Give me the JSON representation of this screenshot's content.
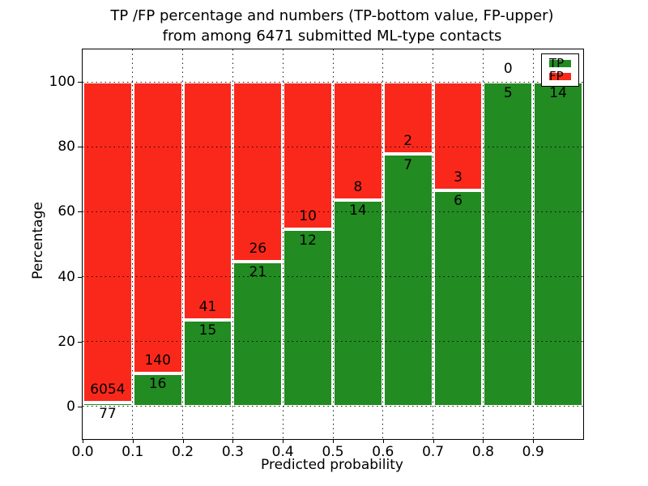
{
  "figure": {
    "title_line1": "TP /FP percentage and numbers (TP-bottom value, FP-upper)",
    "title_line2": "from among 6471 submitted ML-type contacts",
    "xlabel": "Predicted probability",
    "ylabel": "Percentage"
  },
  "legend": {
    "position": "upper-right",
    "items": [
      {
        "label": "TP",
        "color": "#228b22"
      },
      {
        "label": "FP",
        "color": "#fa281b"
      }
    ]
  },
  "chart_data": {
    "type": "bar",
    "stacked": true,
    "normalized": "percent",
    "title": "TP /FP percentage and numbers (TP-bottom value, FP-upper) from among 6471 submitted ML-type contacts",
    "xlabel": "Predicted probability",
    "ylabel": "Percentage",
    "total_contacts": 6471,
    "xlim": [
      0.0,
      1.0
    ],
    "ylim": [
      -10,
      110
    ],
    "x_ticks": [
      "0.0",
      "0.1",
      "0.2",
      "0.3",
      "0.4",
      "0.5",
      "0.6",
      "0.7",
      "0.8",
      "0.9"
    ],
    "y_ticks": [
      0,
      20,
      40,
      60,
      80,
      100
    ],
    "grid": "dotted-black-both-axes",
    "bar_width": 0.1,
    "bar_edge_color": "#ffffff",
    "colors": {
      "tp": "#228b22",
      "fp": "#fa281b"
    },
    "series": [
      {
        "name": "TP",
        "color": "#228b22",
        "position": "bottom"
      },
      {
        "name": "FP",
        "color": "#fa281b",
        "position": "top"
      }
    ],
    "bins": [
      {
        "range": [
          0.0,
          0.1
        ],
        "tp": 77,
        "fp": 6054,
        "tp_label": "77",
        "fp_label": "6054"
      },
      {
        "range": [
          0.1,
          0.2
        ],
        "tp": 16,
        "fp": 140,
        "tp_label": "16",
        "fp_label": "140"
      },
      {
        "range": [
          0.2,
          0.3
        ],
        "tp": 15,
        "fp": 41,
        "tp_label": "15",
        "fp_label": "41"
      },
      {
        "range": [
          0.3,
          0.4
        ],
        "tp": 21,
        "fp": 26,
        "tp_label": "21",
        "fp_label": "26"
      },
      {
        "range": [
          0.4,
          0.5
        ],
        "tp": 12,
        "fp": 10,
        "tp_label": "12",
        "fp_label": "10"
      },
      {
        "range": [
          0.5,
          0.6
        ],
        "tp": 14,
        "fp": 8,
        "tp_label": "14",
        "fp_label": "8"
      },
      {
        "range": [
          0.6,
          0.7
        ],
        "tp": 7,
        "fp": 2,
        "tp_label": "7",
        "fp_label": "2"
      },
      {
        "range": [
          0.7,
          0.8
        ],
        "tp": 6,
        "fp": 3,
        "tp_label": "6",
        "fp_label": "3"
      },
      {
        "range": [
          0.8,
          0.9
        ],
        "tp": 5,
        "fp": 0,
        "tp_label": "5",
        "fp_label": "0"
      },
      {
        "range": [
          0.9,
          1.0
        ],
        "tp": 14,
        "fp": 0,
        "tp_label": "14",
        "fp_label": ""
      }
    ]
  }
}
